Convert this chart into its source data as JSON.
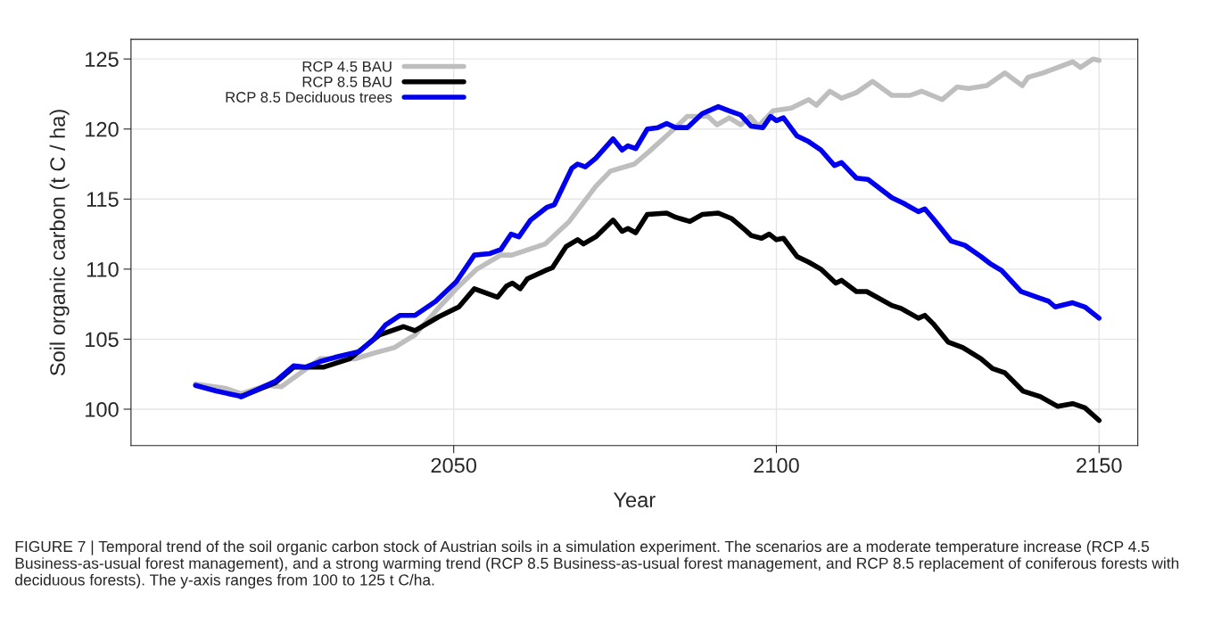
{
  "chart_data": {
    "type": "line",
    "xlabel": "Year",
    "ylabel": "Soil organic carbon (t C / ha)",
    "xlim": [
      2000,
      2156
    ],
    "ylim": [
      97.4,
      126.4
    ],
    "xticks": [
      2050,
      2100,
      2150
    ],
    "yticks": [
      100,
      105,
      110,
      115,
      120,
      125
    ],
    "grid": true,
    "legend": "top left",
    "line_style": "solid",
    "marker": "none",
    "annotations": [
      "FIGURE 7 | Temporal trend of the soil organic carbon stock of Austrian soils in a simulation experiment. The scenarios are a moderate temperature increase (RCP 4.5 Business-as-usual forest management), and a strong warming trend (RCP 8.5 Business-as-usual forest management, and RCP 8.5 replacement of coniferous forests with deciduous forests). The y-axis ranges from 100 to 125 t C/ha."
    ],
    "series": [
      {
        "name": "RCP 4.5 BAU",
        "color": "#bebebe",
        "x": [
          2010,
          2014.6,
          2017.1,
          2021,
          2023.3,
          2029.3,
          2034.8,
          2037.6,
          2040.8,
          2044,
          2047.2,
          2050.4,
          2053.6,
          2057.3,
          2059,
          2064.2,
          2067.9,
          2072,
          2074.3,
          2078,
          2080.3,
          2083.9,
          2086.2,
          2089.4,
          2090.8,
          2092.7,
          2094.5,
          2095.9,
          2097.2,
          2099.5,
          2102.3,
          2105,
          2106.2,
          2108.3,
          2110.1,
          2112.4,
          2114.9,
          2117.9,
          2120.7,
          2122.5,
          2125.7,
          2128,
          2129.8,
          2132.6,
          2135.4,
          2138.1,
          2139,
          2141.3,
          2143.6,
          2145.9,
          2147.1,
          2149.1,
          2150
        ],
        "values": [
          101.8,
          101.5,
          101.1,
          101.7,
          101.6,
          103.6,
          103.6,
          104.0,
          104.4,
          105.3,
          107.0,
          108.6,
          110.0,
          111.0,
          111.0,
          111.8,
          113.4,
          115.9,
          117.0,
          117.5,
          118.4,
          119.9,
          120.9,
          120.9,
          120.3,
          120.8,
          120.3,
          120.9,
          120.2,
          121.3,
          121.5,
          122.1,
          121.7,
          122.7,
          122.2,
          122.6,
          123.4,
          122.4,
          122.4,
          122.7,
          122.1,
          123.0,
          122.9,
          123.1,
          124.0,
          123.1,
          123.7,
          124.0,
          124.4,
          124.8,
          124.4,
          125.0,
          124.9
        ]
      },
      {
        "name": "RCP 8.5 BAU",
        "color": "#000000",
        "x": [
          2017,
          2022.4,
          2025.2,
          2029.8,
          2033.9,
          2038.5,
          2042.2,
          2044,
          2047.7,
          2050.8,
          2053.2,
          2055,
          2056.8,
          2058.2,
          2059.1,
          2060.3,
          2061.4,
          2064.2,
          2065.3,
          2067.4,
          2069.2,
          2070.1,
          2072,
          2074.7,
          2076.1,
          2077,
          2078.2,
          2080,
          2083,
          2084.4,
          2086.6,
          2088.5,
          2091,
          2093.1,
          2094.9,
          2096.1,
          2097.7,
          2098.9,
          2100,
          2101.1,
          2103.2,
          2105,
          2106.9,
          2109.2,
          2110.1,
          2112.4,
          2114,
          2117.9,
          2119.3,
          2122,
          2123,
          2124.3,
          2126.6,
          2128.9,
          2131.7,
          2133.5,
          2135.4,
          2138.2,
          2140.9,
          2143.6,
          2145.9,
          2147.8,
          2150
        ],
        "values": [
          100.9,
          101.9,
          103.0,
          103.0,
          103.6,
          105.3,
          105.9,
          105.6,
          106.6,
          107.3,
          108.6,
          108.3,
          108.0,
          108.8,
          109.0,
          108.6,
          109.3,
          109.9,
          110.1,
          111.6,
          112.1,
          111.8,
          112.3,
          113.5,
          112.7,
          112.9,
          112.6,
          113.9,
          114.0,
          113.7,
          113.4,
          113.9,
          114.0,
          113.6,
          112.9,
          112.4,
          112.2,
          112.5,
          112.1,
          112.2,
          110.9,
          110.5,
          110.0,
          109.0,
          109.2,
          108.4,
          108.4,
          107.4,
          107.2,
          106.5,
          106.7,
          106.1,
          104.8,
          104.4,
          103.6,
          102.9,
          102.6,
          101.3,
          100.9,
          100.2,
          100.4,
          100.1,
          99.2
        ]
      },
      {
        "name": "RCP 8.5 Deciduous trees",
        "color": "#0000ee",
        "x": [
          2010,
          2013.2,
          2017.2,
          2022.4,
          2025.2,
          2027,
          2029.3,
          2031.6,
          2035.3,
          2037.6,
          2039.4,
          2041.7,
          2044,
          2047.2,
          2050.4,
          2053.2,
          2055.5,
          2057.3,
          2058.9,
          2060.1,
          2061.9,
          2064.4,
          2065.6,
          2068.3,
          2069.2,
          2070.4,
          2072,
          2074.7,
          2076.1,
          2077,
          2078.2,
          2080,
          2081.6,
          2083,
          2084.4,
          2086.2,
          2088.5,
          2091,
          2092.7,
          2094.5,
          2096.1,
          2097.9,
          2099.1,
          2100,
          2101.1,
          2103.2,
          2105,
          2106.9,
          2109,
          2110.1,
          2112.4,
          2114.2,
          2117.9,
          2119.7,
          2122,
          2123,
          2124.3,
          2127.1,
          2129.2,
          2131.7,
          2133.1,
          2134.9,
          2137.9,
          2140.4,
          2142.2,
          2143.2,
          2145.9,
          2147.8,
          2150
        ],
        "values": [
          101.7,
          101.3,
          100.9,
          102.0,
          103.1,
          103.0,
          103.4,
          103.7,
          104.1,
          105.0,
          106.0,
          106.7,
          106.7,
          107.7,
          109.1,
          111.0,
          111.1,
          111.4,
          112.5,
          112.3,
          113.5,
          114.4,
          114.6,
          117.2,
          117.5,
          117.3,
          117.9,
          119.3,
          118.5,
          118.8,
          118.6,
          120.0,
          120.1,
          120.4,
          120.1,
          120.1,
          121.1,
          121.6,
          121.3,
          121.0,
          120.2,
          120.1,
          120.9,
          120.6,
          120.8,
          119.5,
          119.1,
          118.5,
          117.4,
          117.6,
          116.5,
          116.4,
          115.1,
          114.7,
          114.1,
          114.3,
          113.6,
          112.0,
          111.7,
          110.9,
          110.4,
          109.9,
          108.4,
          108.0,
          107.7,
          107.3,
          107.6,
          107.3,
          106.5
        ]
      }
    ]
  }
}
